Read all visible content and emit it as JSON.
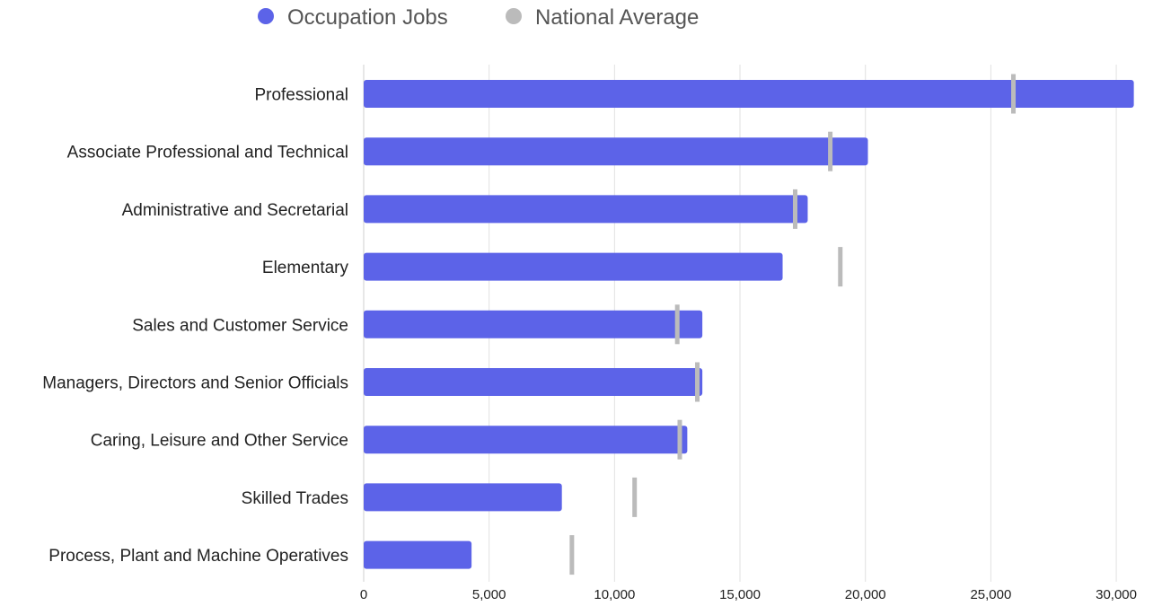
{
  "chart_data": {
    "type": "bar",
    "orientation": "horizontal",
    "categories": [
      "Professional",
      "Associate Professional and Technical",
      "Administrative and Secretarial",
      "Elementary",
      "Sales and Customer Service",
      "Managers, Directors and Senior Officials",
      "Caring, Leisure and Other Service",
      "Skilled Trades",
      "Process, Plant and Machine Operatives"
    ],
    "series": [
      {
        "name": "Occupation Jobs",
        "mark": "bar",
        "color": "#5c63e8",
        "values": [
          30700,
          20100,
          17700,
          16700,
          13500,
          13500,
          12900,
          7900,
          4300
        ]
      },
      {
        "name": "National Average",
        "mark": "tick",
        "color": "#bbbbbb",
        "values": [
          25900,
          18600,
          17200,
          19000,
          12500,
          13300,
          12600,
          10800,
          8300
        ]
      }
    ],
    "xlim": [
      0,
      31000
    ],
    "xticks": [
      0,
      5000,
      10000,
      15000,
      20000,
      25000,
      30000
    ],
    "xtick_labels": [
      "0",
      "5,000",
      "10,000",
      "15,000",
      "20,000",
      "25,000",
      "30,000"
    ],
    "grid": "vertical",
    "legend_position": "top"
  }
}
